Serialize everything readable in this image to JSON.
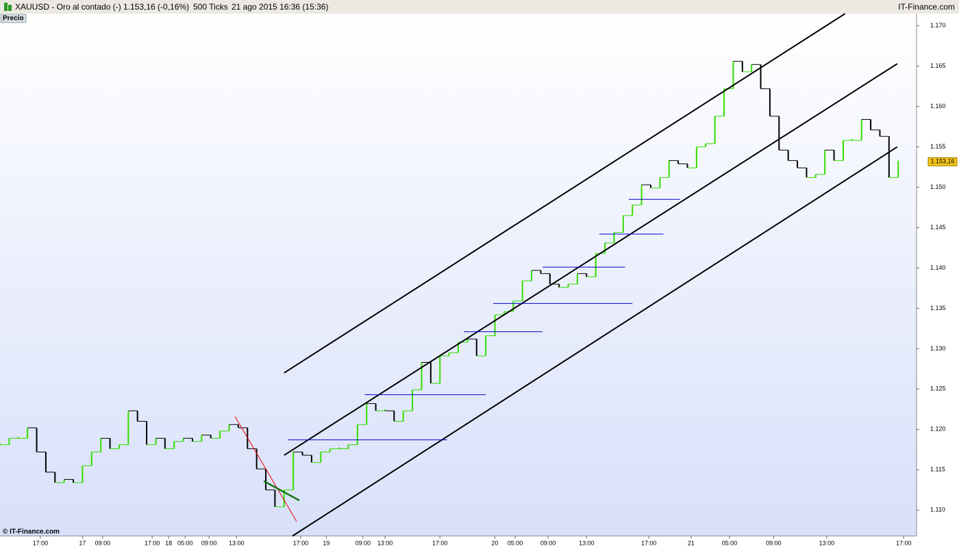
{
  "header": {
    "symbol": "XAUUSD - Oro al contado (-)",
    "quote": "1.153,16 (-0,16%)",
    "period": "500 Ticks",
    "date": "21 ago 2015 16:36 (15:36)",
    "brand": "IT-Finance.com"
  },
  "footer": "© IT-Finance.com",
  "chart_data": {
    "type": "line",
    "y_label": "Precio",
    "up_color": "#33dd00",
    "down_color": "#000000",
    "xlim": [
      0,
      500
    ],
    "ylim": [
      1.1068,
      1.1715
    ],
    "yticks": [
      {
        "value": 1.11,
        "label": "1.110"
      },
      1.115,
      {
        "value": 1.12,
        "label": "1.120"
      },
      1.125,
      {
        "value": 1.13,
        "label": "1.130"
      },
      1.135,
      {
        "value": 1.14,
        "label": "1.140"
      },
      1.145,
      {
        "value": 1.15,
        "label": "1.150"
      },
      1.155,
      {
        "value": 1.16,
        "label": "1.160"
      },
      1.165,
      {
        "value": 1.17,
        "label": "1.170"
      }
    ],
    "xticks": [
      {
        "value": 22,
        "label": "17:00"
      },
      {
        "value": 45,
        "label": "17"
      },
      {
        "value": 56,
        "label": "09:00"
      },
      {
        "value": 83,
        "label": "17:00"
      },
      {
        "value": 92,
        "label": "18"
      },
      {
        "value": 101,
        "label": "05:00"
      },
      {
        "value": 114,
        "label": "09:00"
      },
      {
        "value": 129,
        "label": "13:00"
      },
      {
        "value": 164,
        "label": "17:00"
      },
      {
        "value": 178,
        "label": "19"
      },
      {
        "value": 198,
        "label": "09:00"
      },
      {
        "value": 210,
        "label": "13:00"
      },
      {
        "value": 240,
        "label": "17:00"
      },
      {
        "value": 270,
        "label": "20"
      },
      {
        "value": 281,
        "label": "05:00"
      },
      {
        "value": 299,
        "label": "09:00"
      },
      {
        "value": 320,
        "label": "13:00"
      },
      {
        "value": 354,
        "label": "17:00"
      },
      {
        "value": 377,
        "label": "21"
      },
      {
        "value": 398,
        "label": "05:00"
      },
      {
        "value": 422,
        "label": "09:00"
      },
      {
        "value": 451,
        "label": "13:00"
      },
      {
        "value": 493,
        "label": "17:00"
      }
    ],
    "x": [
      0,
      5,
      10,
      15,
      20,
      25,
      30,
      35,
      40,
      45,
      50,
      55,
      60,
      65,
      70,
      75,
      80,
      85,
      90,
      95,
      100,
      105,
      110,
      115,
      120,
      125,
      130,
      135,
      140,
      145,
      150,
      155,
      160,
      165,
      170,
      175,
      180,
      185,
      190,
      195,
      200,
      205,
      210,
      215,
      220,
      225,
      230,
      235,
      240,
      245,
      250,
      255,
      260,
      265,
      270,
      275,
      280,
      285,
      290,
      295,
      300,
      305,
      310,
      315,
      320,
      325,
      330,
      335,
      340,
      345,
      350,
      355,
      360,
      365,
      370,
      375,
      380,
      385,
      390,
      395,
      400,
      405,
      410,
      415,
      420,
      425,
      430,
      435,
      440,
      445,
      450,
      455,
      460,
      465,
      470,
      475,
      480,
      485,
      490
    ],
    "values": [
      1.1181,
      1.1189,
      1.1189,
      1.1202,
      1.1172,
      1.1147,
      1.1134,
      1.1138,
      1.1134,
      1.1155,
      1.1172,
      1.1189,
      1.1176,
      1.1181,
      1.1223,
      1.121,
      1.1181,
      1.1189,
      1.1176,
      1.1185,
      1.1189,
      1.1185,
      1.1193,
      1.1189,
      1.1198,
      1.1206,
      1.1202,
      1.1176,
      1.1151,
      1.1125,
      1.1104,
      1.1125,
      1.1172,
      1.1168,
      1.1159,
      1.1172,
      1.1176,
      1.1176,
      1.1181,
      1.1206,
      1.1232,
      1.1223,
      1.1223,
      1.121,
      1.1223,
      1.1249,
      1.1283,
      1.1257,
      1.1291,
      1.1295,
      1.1308,
      1.1312,
      1.1291,
      1.1316,
      1.1342,
      1.1346,
      1.1359,
      1.1384,
      1.1397,
      1.1393,
      1.138,
      1.1376,
      1.138,
      1.1393,
      1.1389,
      1.1418,
      1.1431,
      1.1444,
      1.1465,
      1.1478,
      1.1503,
      1.1499,
      1.1512,
      1.1533,
      1.1529,
      1.1524,
      1.155,
      1.1554,
      1.1588,
      1.1622,
      1.1656,
      1.1643,
      1.1652,
      1.1622,
      1.1588,
      1.1546,
      1.1533,
      1.1524,
      1.1512,
      1.1516,
      1.1546,
      1.1533,
      1.1558,
      1.1558,
      1.1584,
      1.1571,
      1.1563,
      1.1512,
      1.1533
    ],
    "last_price": {
      "value": 1.15316,
      "label": "1.153,16"
    },
    "trendlines": [
      {
        "x": [
          155,
          461
        ],
        "y": [
          1.127,
          1.1715
        ],
        "color": "#000000",
        "width": 2
      },
      {
        "x": [
          155,
          489.5
        ],
        "y": [
          1.1168,
          1.1653
        ],
        "color": "#000000",
        "width": 2
      },
      {
        "x": [
          159.6,
          489.5
        ],
        "y": [
          1.1068,
          1.155
        ],
        "color": "#000000",
        "width": 2
      },
      {
        "x": [
          128.2,
          161.8
        ],
        "y": [
          1.1216,
          1.1086
        ],
        "color": "#ee0000",
        "width": 1
      },
      {
        "x": [
          143.9,
          163.3
        ],
        "y": [
          1.1136,
          1.1112
        ],
        "color": "#117711",
        "width": 2.5
      },
      {
        "x": [
          157,
          244
        ],
        "y": [
          1.1187,
          1.1187
        ],
        "color": "#0000cc",
        "width": 1
      },
      {
        "x": [
          199,
          265
        ],
        "y": [
          1.1243,
          1.1243
        ],
        "color": "#0000cc",
        "width": 1
      },
      {
        "x": [
          253,
          296
        ],
        "y": [
          1.1321,
          1.1321
        ],
        "color": "#0000cc",
        "width": 1
      },
      {
        "x": [
          269,
          345
        ],
        "y": [
          1.1356,
          1.1356
        ],
        "color": "#0000cc",
        "width": 1
      },
      {
        "x": [
          296,
          341
        ],
        "y": [
          1.1401,
          1.1401
        ],
        "color": "#0000cc",
        "width": 1
      },
      {
        "x": [
          327,
          362
        ],
        "y": [
          1.1442,
          1.1442
        ],
        "color": "#0000cc",
        "width": 1
      },
      {
        "x": [
          343,
          371
        ],
        "y": [
          1.1485,
          1.1485
        ],
        "color": "#0000cc",
        "width": 1
      }
    ]
  }
}
